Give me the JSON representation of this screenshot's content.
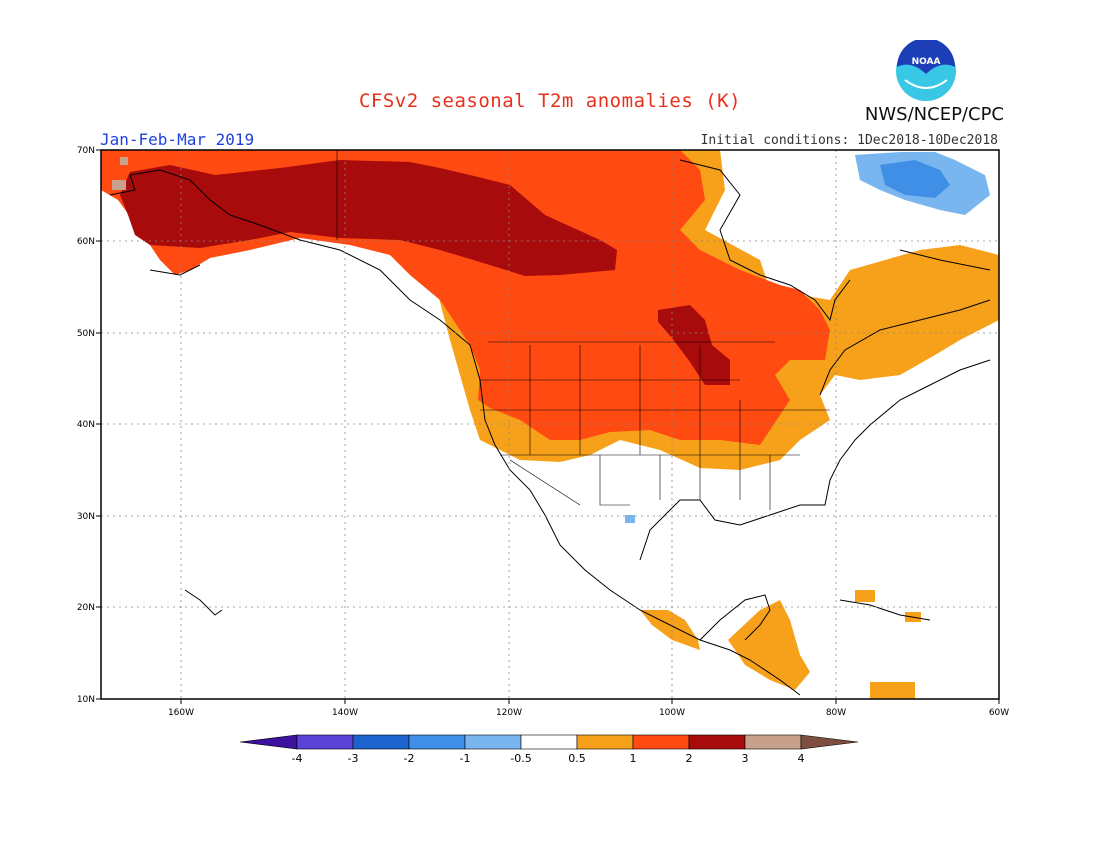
{
  "title": "CFSv2 seasonal T2m anomalies (K)",
  "season": "Jan-Feb-Mar 2019",
  "initial_conditions": "Initial conditions: 1Dec2018-10Dec2018",
  "agency": "NWS/NCEP/CPC",
  "logo_text": "NOAA",
  "map": {
    "lat_labels": [
      "70N",
      "60N",
      "50N",
      "40N",
      "30N",
      "20N",
      "10N"
    ],
    "lon_labels": [
      "160W",
      "140W",
      "120W",
      "100W",
      "80W",
      "60W"
    ],
    "lat_range": [
      10,
      70
    ],
    "lon_range": [
      -170,
      -60
    ],
    "gridlines": true
  },
  "colorbar": {
    "tick_labels": [
      "-4",
      "-3",
      "-2",
      "-1",
      "-0.5",
      "0.5",
      "1",
      "2",
      "3",
      "4"
    ],
    "colors": [
      "#3d12a0",
      "#5a43d6",
      "#1d63cf",
      "#3f8fe6",
      "#79b6f0",
      "#ffffff",
      "#f7a11a",
      "#ff4a12",
      "#a80b0b",
      "#c8a08c",
      "#7e4e3e"
    ]
  },
  "legend_colors": {
    "r1": "#f7a11a",
    "r2": "#ff4a12",
    "r3": "#a80b0b",
    "r4": "#c8a08c",
    "b1": "#79b6f0",
    "b2": "#3f8fe6"
  }
}
